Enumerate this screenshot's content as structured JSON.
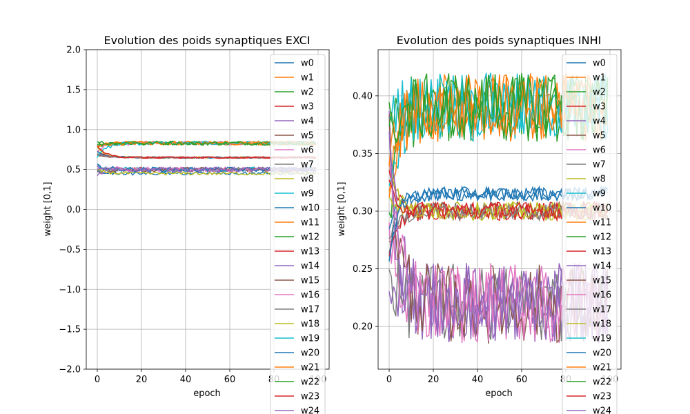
{
  "chart_data": [
    {
      "type": "line",
      "title": "Evolution des poids synaptiques EXCI",
      "xlabel": "epoch",
      "ylabel": "weight [0,1]",
      "xlim": [
        -5,
        105
      ],
      "ylim": [
        -2.0,
        2.0
      ],
      "x_ticks": [
        0,
        20,
        40,
        60,
        80,
        100
      ],
      "y_ticks": [
        -2.0,
        -1.5,
        -1.0,
        -0.5,
        0.0,
        0.5,
        1.0,
        1.5,
        2.0
      ],
      "x_tick_labels": [
        "0",
        "20",
        "40",
        "60",
        "80",
        "100"
      ],
      "y_tick_labels": [
        "−2.0",
        "−1.5",
        "−1.0",
        "−0.5",
        "0.0",
        "0.5",
        "1.0",
        "1.5",
        "2.0"
      ],
      "grid": true,
      "legend_position": "upper-right",
      "series_generator": {
        "epochs": 100,
        "groups": [
          {
            "names": [
              "w1",
              "w2",
              "w6",
              "w11",
              "w12",
              "w19",
              "w21",
              "w22"
            ],
            "start": [
              0.62,
              0.86
            ],
            "settle": 0.83,
            "noise": 0.025
          },
          {
            "names": [
              "w3",
              "w5",
              "w8",
              "w10",
              "w13",
              "w17",
              "w23"
            ],
            "start": [
              0.6,
              0.9
            ],
            "settle": 0.65,
            "noise": 0.01
          },
          {
            "names": [
              "w4",
              "w7",
              "w9",
              "w14",
              "w15",
              "w16",
              "w20",
              "w24"
            ],
            "start": [
              0.4,
              0.6
            ],
            "settle": 0.5,
            "noise": 0.03
          },
          {
            "names": [
              "w0",
              "w18"
            ],
            "start": [
              0.45,
              0.5
            ],
            "settle": 0.45,
            "noise": 0.02
          }
        ]
      }
    },
    {
      "type": "line",
      "title": "Evolution des poids synaptiques INHI",
      "xlabel": "epoch",
      "ylabel": "weight [0,1]",
      "xlim": [
        -5,
        105
      ],
      "ylim": [
        0.163,
        0.44
      ],
      "x_ticks": [
        0,
        20,
        40,
        60,
        80,
        100
      ],
      "y_ticks": [
        0.2,
        0.25,
        0.3,
        0.35,
        0.4
      ],
      "x_tick_labels": [
        "0",
        "20",
        "40",
        "60",
        "80",
        "100"
      ],
      "y_tick_labels": [
        "0.20",
        "0.25",
        "0.30",
        "0.35",
        "0.40"
      ],
      "grid": true,
      "legend_position": "upper-right",
      "series_generator": {
        "epochs": 100,
        "groups": [
          {
            "names": [
              "w1",
              "w2",
              "w9",
              "w11",
              "w12",
              "w19",
              "w21",
              "w22"
            ],
            "start": [
              0.26,
              0.4
            ],
            "settle": 0.39,
            "noise": 0.03
          },
          {
            "names": [
              "w3",
              "w5",
              "w8",
              "w13",
              "w17",
              "w18",
              "w23"
            ],
            "start": [
              0.26,
              0.35
            ],
            "settle": 0.3,
            "noise": 0.008
          },
          {
            "names": [
              "w0",
              "w10",
              "w20"
            ],
            "start": [
              0.25,
              0.3
            ],
            "settle": 0.315,
            "noise": 0.006
          },
          {
            "names": [
              "w4",
              "w6",
              "w7",
              "w14",
              "w15",
              "w16",
              "w24"
            ],
            "start": [
              0.2,
              0.42
            ],
            "settle": 0.22,
            "noise": 0.035
          }
        ]
      }
    }
  ],
  "legend_entries": [
    "w0",
    "w1",
    "w2",
    "w3",
    "w4",
    "w5",
    "w6",
    "w7",
    "w8",
    "w9",
    "w10",
    "w11",
    "w12",
    "w13",
    "w14",
    "w15",
    "w16",
    "w17",
    "w18",
    "w19",
    "w20",
    "w21",
    "w22",
    "w23",
    "w24"
  ],
  "series_colors": [
    "#1f77b4",
    "#ff7f0e",
    "#2ca02c",
    "#d62728",
    "#9467bd",
    "#8c564b",
    "#e377c2",
    "#7f7f7f",
    "#bcbd22",
    "#17becf"
  ]
}
